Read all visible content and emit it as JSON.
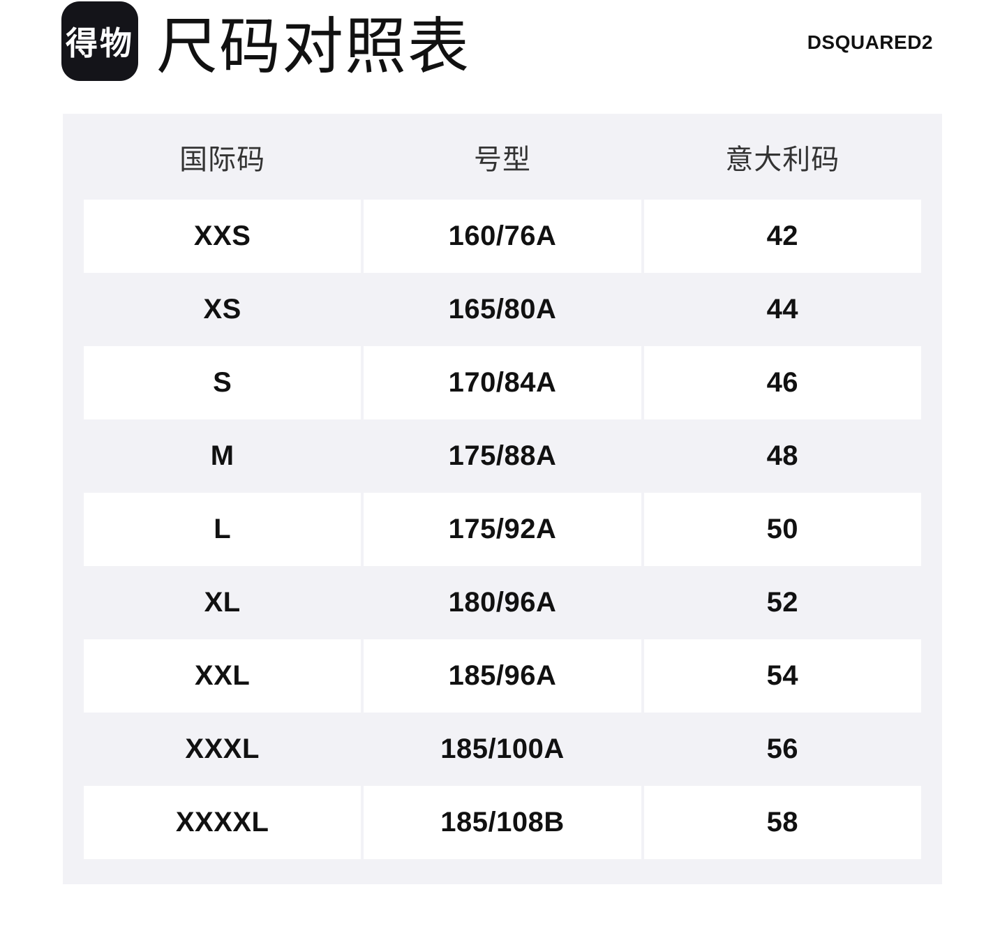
{
  "header": {
    "logo_text": "得物",
    "title": "尺码对照表",
    "brand": "DSQUARED2"
  },
  "table": {
    "columns": [
      "国际码",
      "号型",
      "意大利码"
    ],
    "rows": [
      {
        "intl": "XXS",
        "model": "160/76A",
        "italy": "42"
      },
      {
        "intl": "XS",
        "model": "165/80A",
        "italy": "44"
      },
      {
        "intl": "S",
        "model": "170/84A",
        "italy": "46"
      },
      {
        "intl": "M",
        "model": "175/88A",
        "italy": "48"
      },
      {
        "intl": "L",
        "model": "175/92A",
        "italy": "50"
      },
      {
        "intl": "XL",
        "model": "180/96A",
        "italy": "52"
      },
      {
        "intl": "XXL",
        "model": "185/96A",
        "italy": "54"
      },
      {
        "intl": "XXXL",
        "model": "185/100A",
        "italy": "56"
      },
      {
        "intl": "XXXXL",
        "model": "185/108B",
        "italy": "58"
      }
    ]
  },
  "colors": {
    "page_background": "#ffffff",
    "card_background": "#f2f2f6",
    "row_background": "#ffffff",
    "text": "#111111",
    "header_text": "#333333",
    "logo_background": "#141419",
    "logo_text": "#ffffff"
  }
}
